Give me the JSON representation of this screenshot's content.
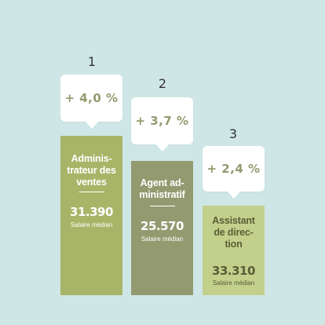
{
  "chart_data": {
    "type": "bar",
    "categories": [
      "Administrateur des ventes",
      "Agent administratif",
      "Assistant de direction"
    ],
    "ranks": [
      "1",
      "2",
      "3"
    ],
    "bar_titles": [
      [
        "Adminis-",
        "trateur des",
        "ventes"
      ],
      [
        "Agent ad-",
        "ministratif"
      ],
      [
        "Assistant",
        "de direc-",
        "tion"
      ]
    ],
    "series": [
      {
        "name": "",
        "values": [
          4.0,
          3.7,
          2.4
        ],
        "labels": [
          "+ 4,0 %",
          "+ 3,7 %",
          "+ 2,4 %"
        ]
      }
    ],
    "salaries": [
      "31.390",
      "25.570",
      "33.310"
    ],
    "salary_label": "Salaire médian",
    "colors": {
      "background": "#cfe6e6",
      "bar_1": "#a8b568",
      "bar_2": "#949a70",
      "bar_3": "#c2d08c",
      "percent_text": "#949a70"
    }
  }
}
